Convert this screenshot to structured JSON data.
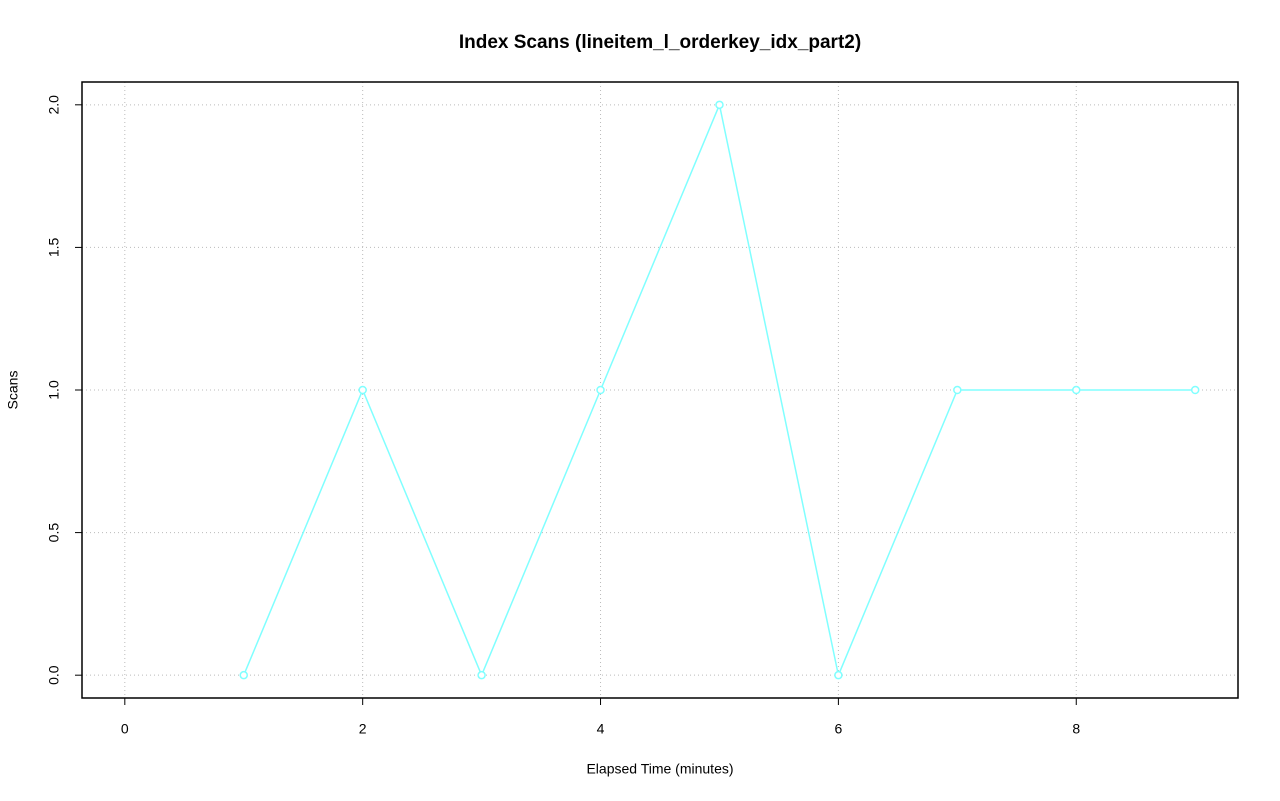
{
  "chart_data": {
    "type": "line",
    "title": "Index Scans (lineitem_l_orderkey_idx_part2)",
    "x_label": "Elapsed Time (minutes)",
    "y_label": "Scans",
    "x": [
      1,
      2,
      3,
      4,
      5,
      6,
      7,
      8,
      9
    ],
    "values": [
      0,
      1,
      0,
      1,
      2,
      0,
      1,
      1,
      1
    ],
    "color": "#80ffff",
    "xlim": [
      -0.36,
      9.36
    ],
    "xticks": [
      0,
      2,
      4,
      6,
      8
    ],
    "ylim": [
      -0.08,
      2.08
    ],
    "yticks": [
      {
        "value": 0,
        "label": "0.0"
      },
      {
        "value": 0.5,
        "label": "0.5"
      },
      {
        "value": 1,
        "label": "1.0"
      },
      {
        "value": 1.5,
        "label": "1.5"
      },
      {
        "value": 2,
        "label": "2.0"
      }
    ],
    "grid": true
  }
}
